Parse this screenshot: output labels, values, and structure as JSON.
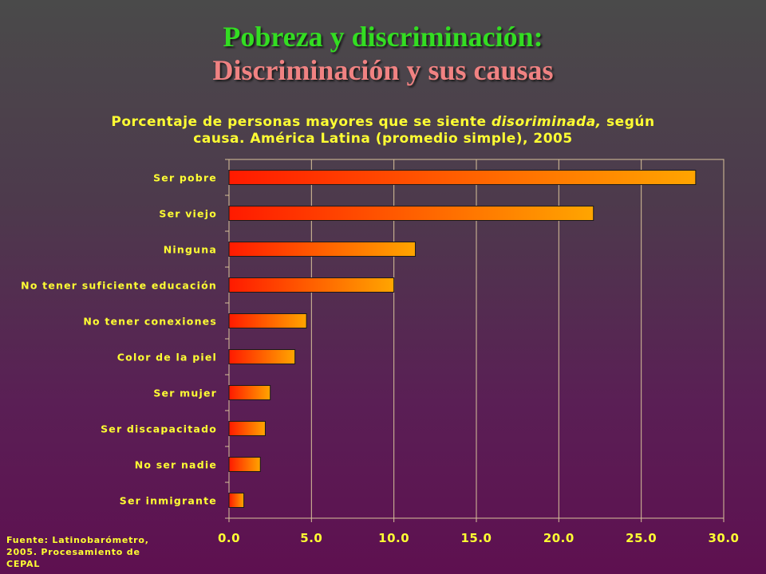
{
  "header": {
    "title_line1": "Pobreza y discriminación:",
    "title_line2": "Discriminación y sus causas"
  },
  "subtitle": {
    "part1": "Porcentaje de personas mayores que se siente ",
    "italic": "disoriminada,",
    "part2": " según",
    "line2": "causa. América Latina (promedio simple), 2005"
  },
  "source": {
    "line1": "Fuente: Latinobarómetro,",
    "line2": "2005. Procesamiento de",
    "line3": "CEPAL"
  },
  "colors": {
    "bar_start": "#ff1a00",
    "bar_end": "#ffa500",
    "text": "#ffff33",
    "gridline": "#d9c39a"
  },
  "chart_data": {
    "type": "bar",
    "orientation": "horizontal",
    "categories": [
      "Ser pobre",
      "Ser viejo",
      "Ninguna",
      "No tener  suficiente educación",
      "No tener conexiones",
      "Color de la piel",
      "Ser mujer",
      "Ser discapacitado",
      "No ser nadie",
      "Ser inmigrante"
    ],
    "values": [
      28.3,
      22.1,
      11.3,
      10.0,
      4.7,
      4.0,
      2.5,
      2.2,
      1.9,
      0.9
    ],
    "xlim": [
      0,
      30
    ],
    "xticks": [
      "0.0",
      "5.0",
      "10.0",
      "15.0",
      "20.0",
      "25.0",
      "30.0"
    ],
    "xtick_values": [
      0,
      5,
      10,
      15,
      20,
      25,
      30
    ],
    "grid": true
  }
}
